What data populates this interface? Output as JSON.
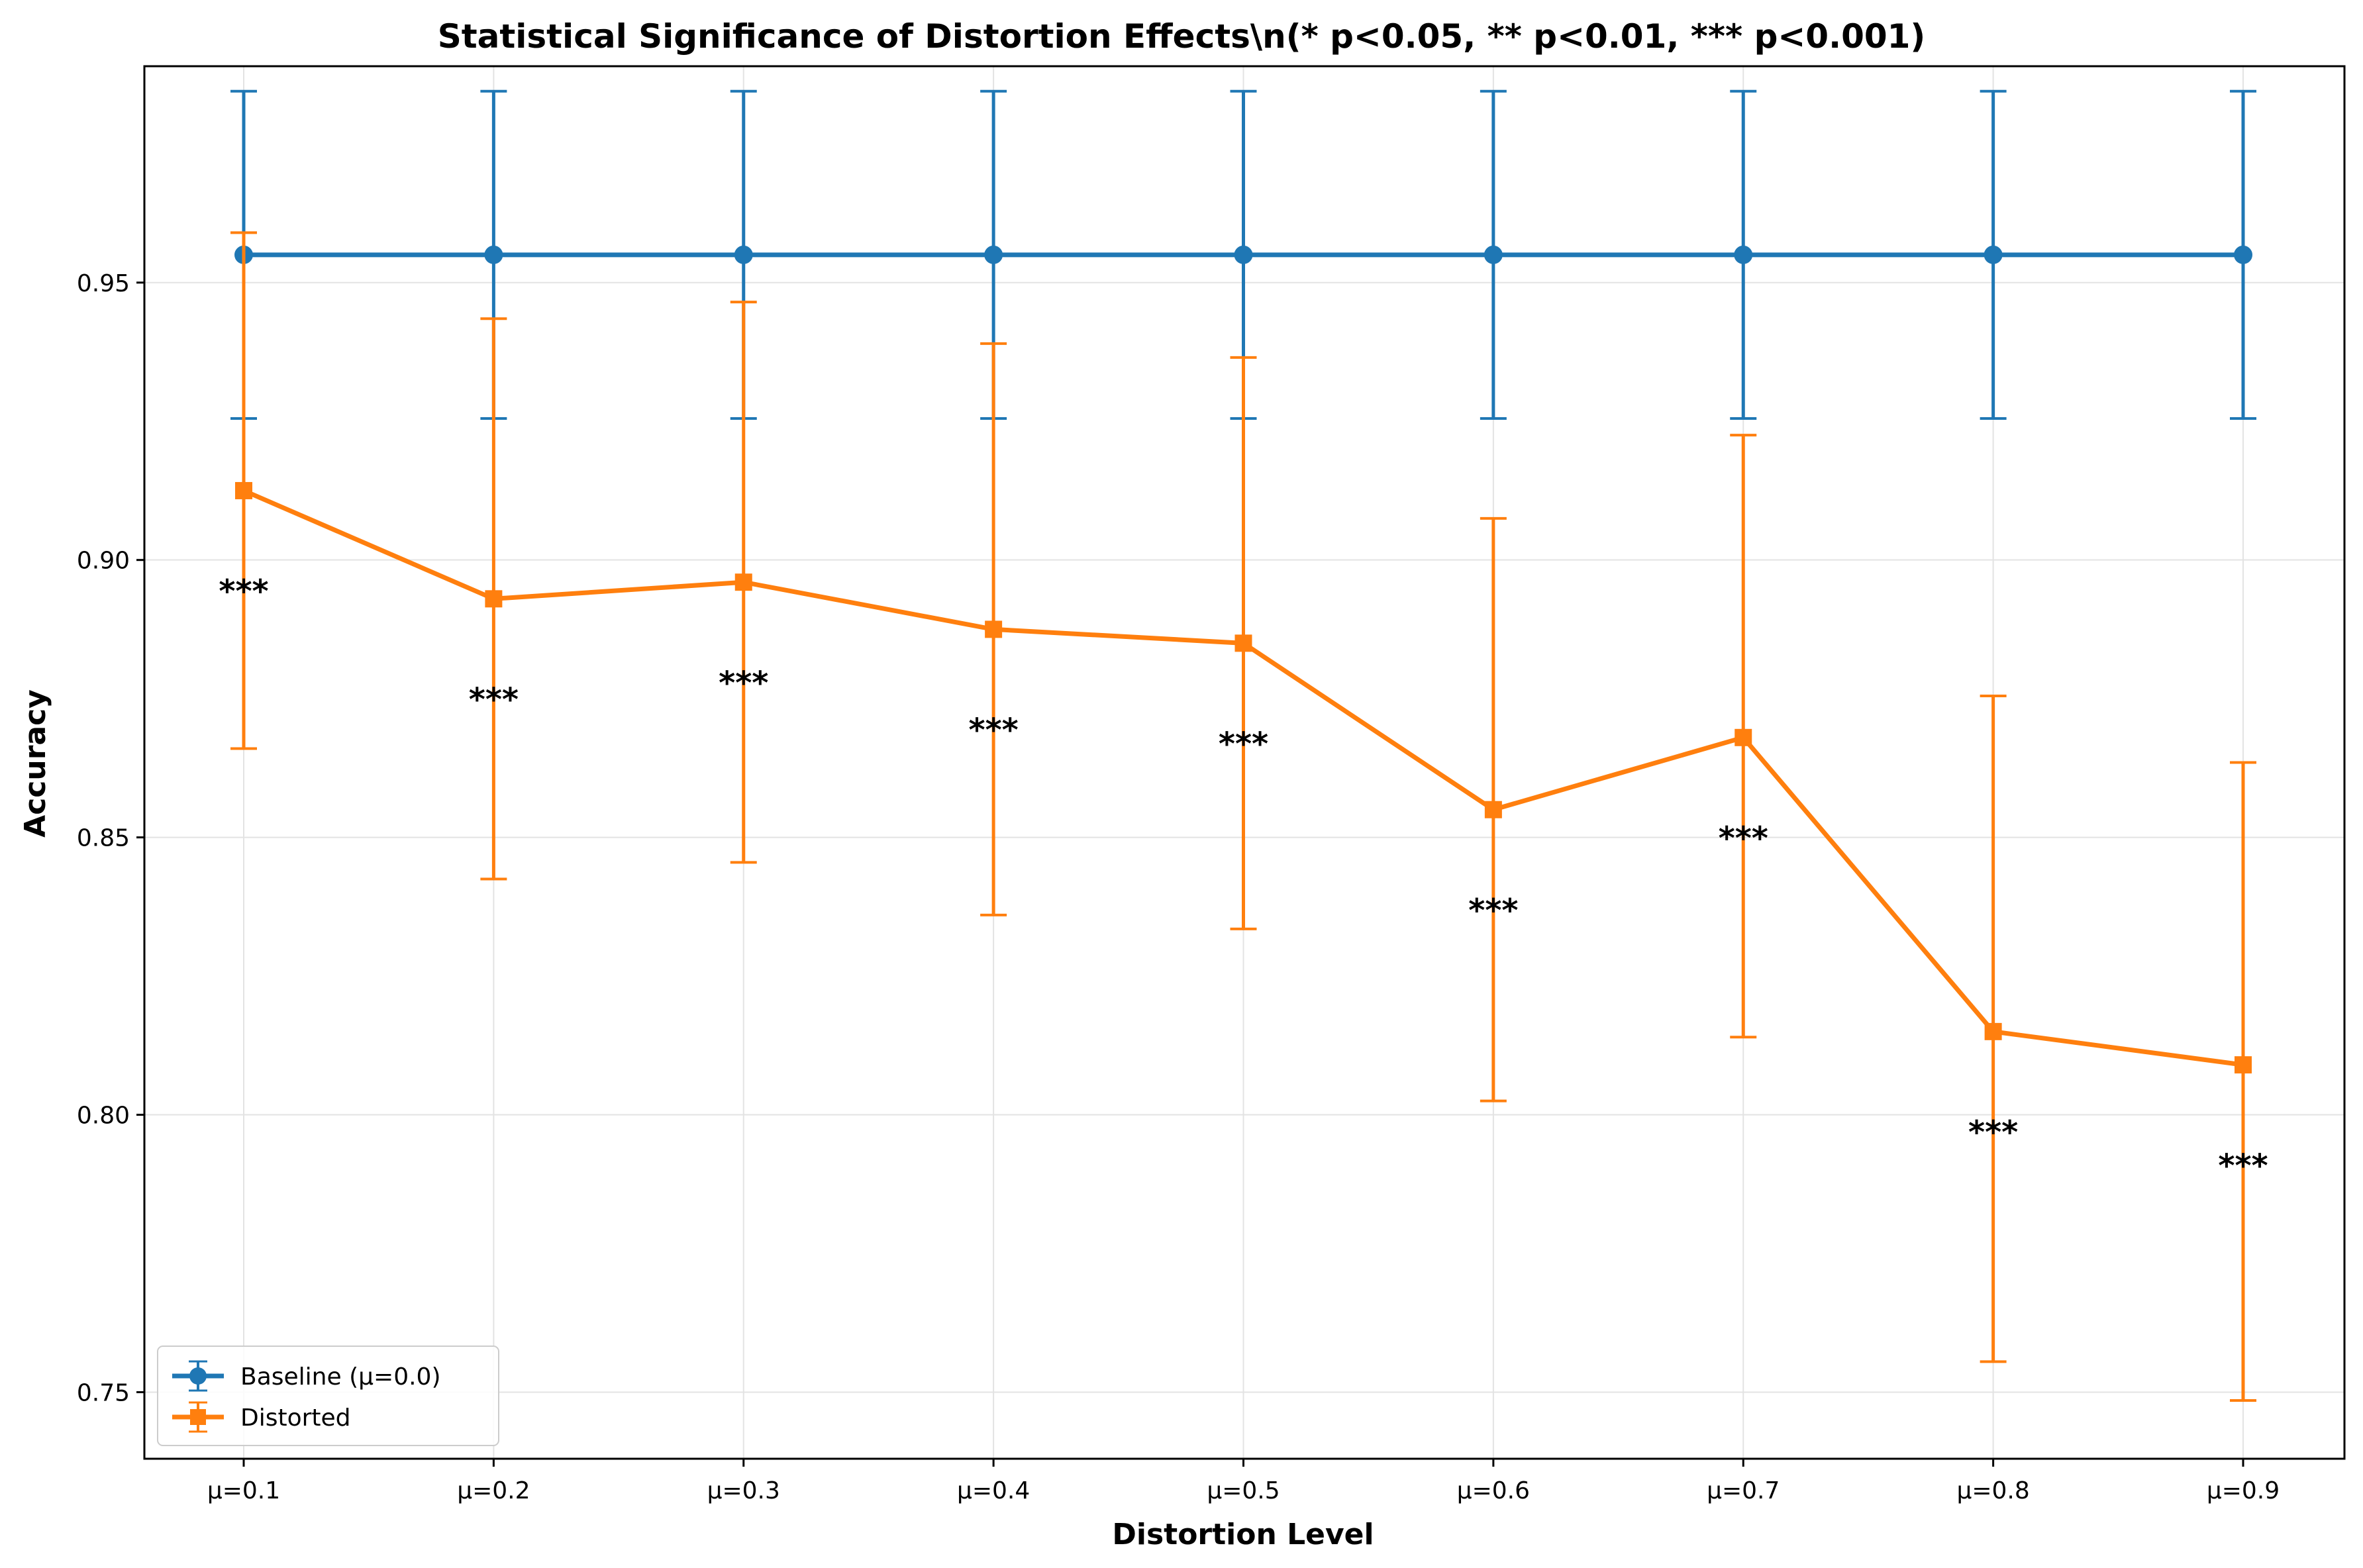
{
  "chart_data": {
    "type": "line",
    "title": "Statistical Significance of Distortion Effects\\n(* p<0.05, ** p<0.01, *** p<0.001)",
    "xlabel": "Distortion Level",
    "ylabel": "Accuracy",
    "categories": [
      "μ=0.1",
      "μ=0.2",
      "μ=0.3",
      "μ=0.4",
      "μ=0.5",
      "μ=0.6",
      "μ=0.7",
      "μ=0.8",
      "μ=0.9"
    ],
    "ylim": [
      0.738,
      0.989
    ],
    "yticks": [
      0.75,
      0.8,
      0.85,
      0.9,
      0.95
    ],
    "ytick_labels": [
      "0.75",
      "0.80",
      "0.85",
      "0.90",
      "0.95"
    ],
    "grid": true,
    "legend_position": "lower-left",
    "series": [
      {
        "name": "Baseline (μ=0.0)",
        "color": "#1f77b4",
        "marker": "circle",
        "values": [
          0.955,
          0.955,
          0.955,
          0.955,
          0.955,
          0.955,
          0.955,
          0.955,
          0.955
        ],
        "errors": [
          0.0295,
          0.0295,
          0.0295,
          0.0295,
          0.0295,
          0.0295,
          0.0295,
          0.0295,
          0.0295
        ]
      },
      {
        "name": "Distorted",
        "color": "#ff7f0e",
        "marker": "square",
        "values": [
          0.9125,
          0.893,
          0.896,
          0.8875,
          0.885,
          0.855,
          0.868,
          0.815,
          0.809
        ],
        "errors": [
          0.0465,
          0.0505,
          0.0505,
          0.0515,
          0.0515,
          0.0525,
          0.0545,
          0.0605,
          0.0545
        ],
        "lower_errors": [
          0.0465,
          0.0505,
          0.0505,
          0.0515,
          0.0515,
          0.0525,
          0.054,
          0.0595,
          0.0605
        ]
      }
    ],
    "annotations": [
      {
        "index": 0,
        "label": "***",
        "y": 0.895
      },
      {
        "index": 1,
        "label": "***",
        "y": 0.8755
      },
      {
        "index": 2,
        "label": "***",
        "y": 0.8785
      },
      {
        "index": 3,
        "label": "***",
        "y": 0.87
      },
      {
        "index": 4,
        "label": "***",
        "y": 0.8675
      },
      {
        "index": 5,
        "label": "***",
        "y": 0.8375
      },
      {
        "index": 6,
        "label": "***",
        "y": 0.8505
      },
      {
        "index": 7,
        "label": "***",
        "y": 0.7975
      },
      {
        "index": 8,
        "label": "***",
        "y": 0.7915
      }
    ]
  }
}
